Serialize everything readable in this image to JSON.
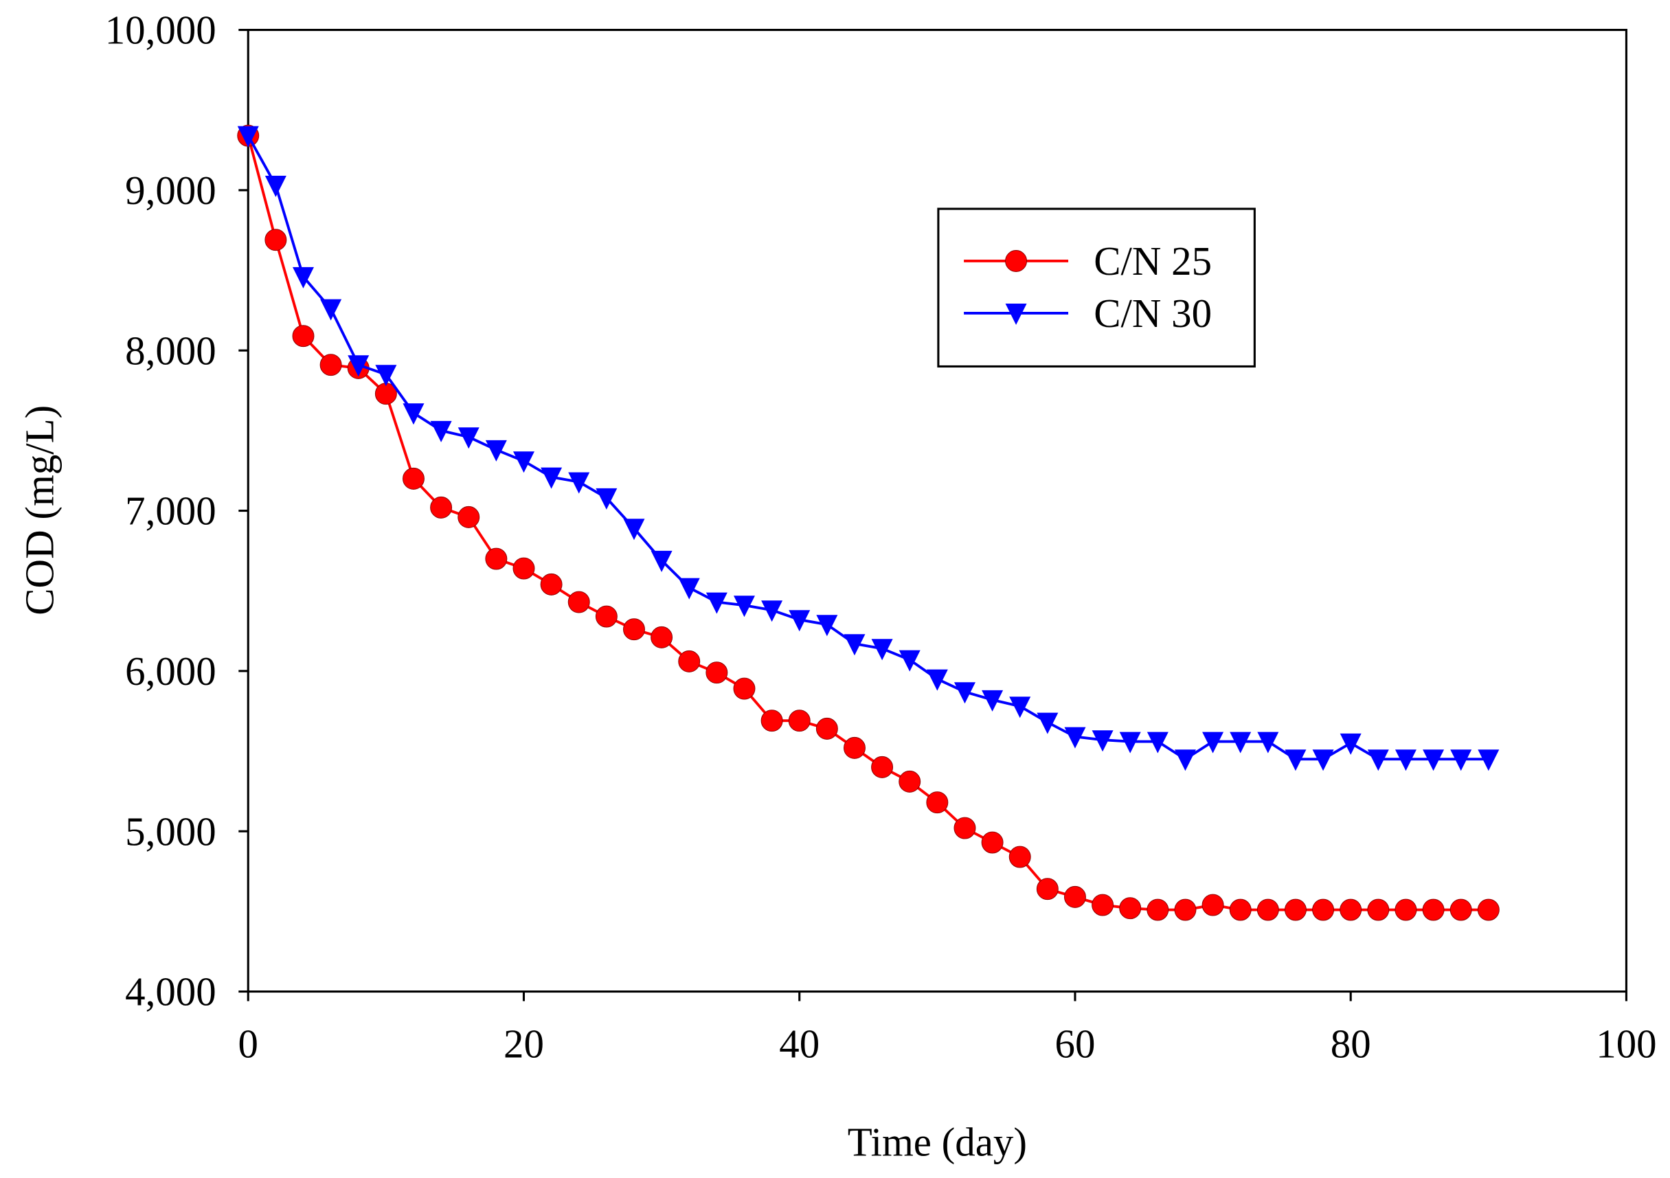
{
  "chart_data": {
    "type": "line",
    "title": "",
    "xlabel": "Time (day)",
    "ylabel": "COD (mg/L)",
    "xlim": [
      0,
      100
    ],
    "ylim": [
      4000,
      10000
    ],
    "xticks": [
      0,
      20,
      40,
      60,
      80,
      100
    ],
    "xtick_labels": [
      "0",
      "20",
      "40",
      "60",
      "80",
      "100"
    ],
    "yticks": [
      4000,
      5000,
      6000,
      7000,
      8000,
      9000,
      10000
    ],
    "ytick_labels": [
      "4,000",
      "5,000",
      "6,000",
      "7,000",
      "8,000",
      "9,000",
      "10,000"
    ],
    "grid": false,
    "legend_position": "top-right",
    "x": [
      0,
      2,
      4,
      6,
      8,
      10,
      12,
      14,
      16,
      18,
      20,
      22,
      24,
      26,
      28,
      30,
      32,
      34,
      36,
      38,
      40,
      42,
      44,
      46,
      48,
      50,
      52,
      54,
      56,
      58,
      60,
      62,
      64,
      66,
      68,
      70,
      72,
      74,
      76,
      78,
      80,
      82,
      84,
      86,
      88,
      90
    ],
    "series": [
      {
        "name": "C/N 25",
        "color": "#ff0000",
        "marker": "circle",
        "values": [
          9340,
          8690,
          8090,
          7910,
          7890,
          7730,
          7200,
          7020,
          6960,
          6700,
          6640,
          6540,
          6430,
          6340,
          6260,
          6210,
          6060,
          5990,
          5890,
          5690,
          5690,
          5640,
          5520,
          5400,
          5310,
          5180,
          5020,
          4930,
          4840,
          4640,
          4590,
          4540,
          4520,
          4510,
          4510,
          4540,
          4510,
          4510,
          4510,
          4510,
          4510,
          4510,
          4510,
          4510,
          4510,
          4510
        ]
      },
      {
        "name": "C/N 30",
        "color": "#0000ff",
        "marker": "triangle-down",
        "values": [
          9340,
          9030,
          8460,
          8260,
          7910,
          7850,
          7610,
          7500,
          7460,
          7380,
          7310,
          7210,
          7180,
          7080,
          6890,
          6690,
          6520,
          6430,
          6410,
          6380,
          6320,
          6290,
          6170,
          6140,
          6070,
          5950,
          5870,
          5820,
          5780,
          5680,
          5590,
          5570,
          5560,
          5560,
          5450,
          5560,
          5560,
          5560,
          5450,
          5450,
          5550,
          5450,
          5450,
          5450,
          5450,
          5450
        ]
      }
    ]
  }
}
